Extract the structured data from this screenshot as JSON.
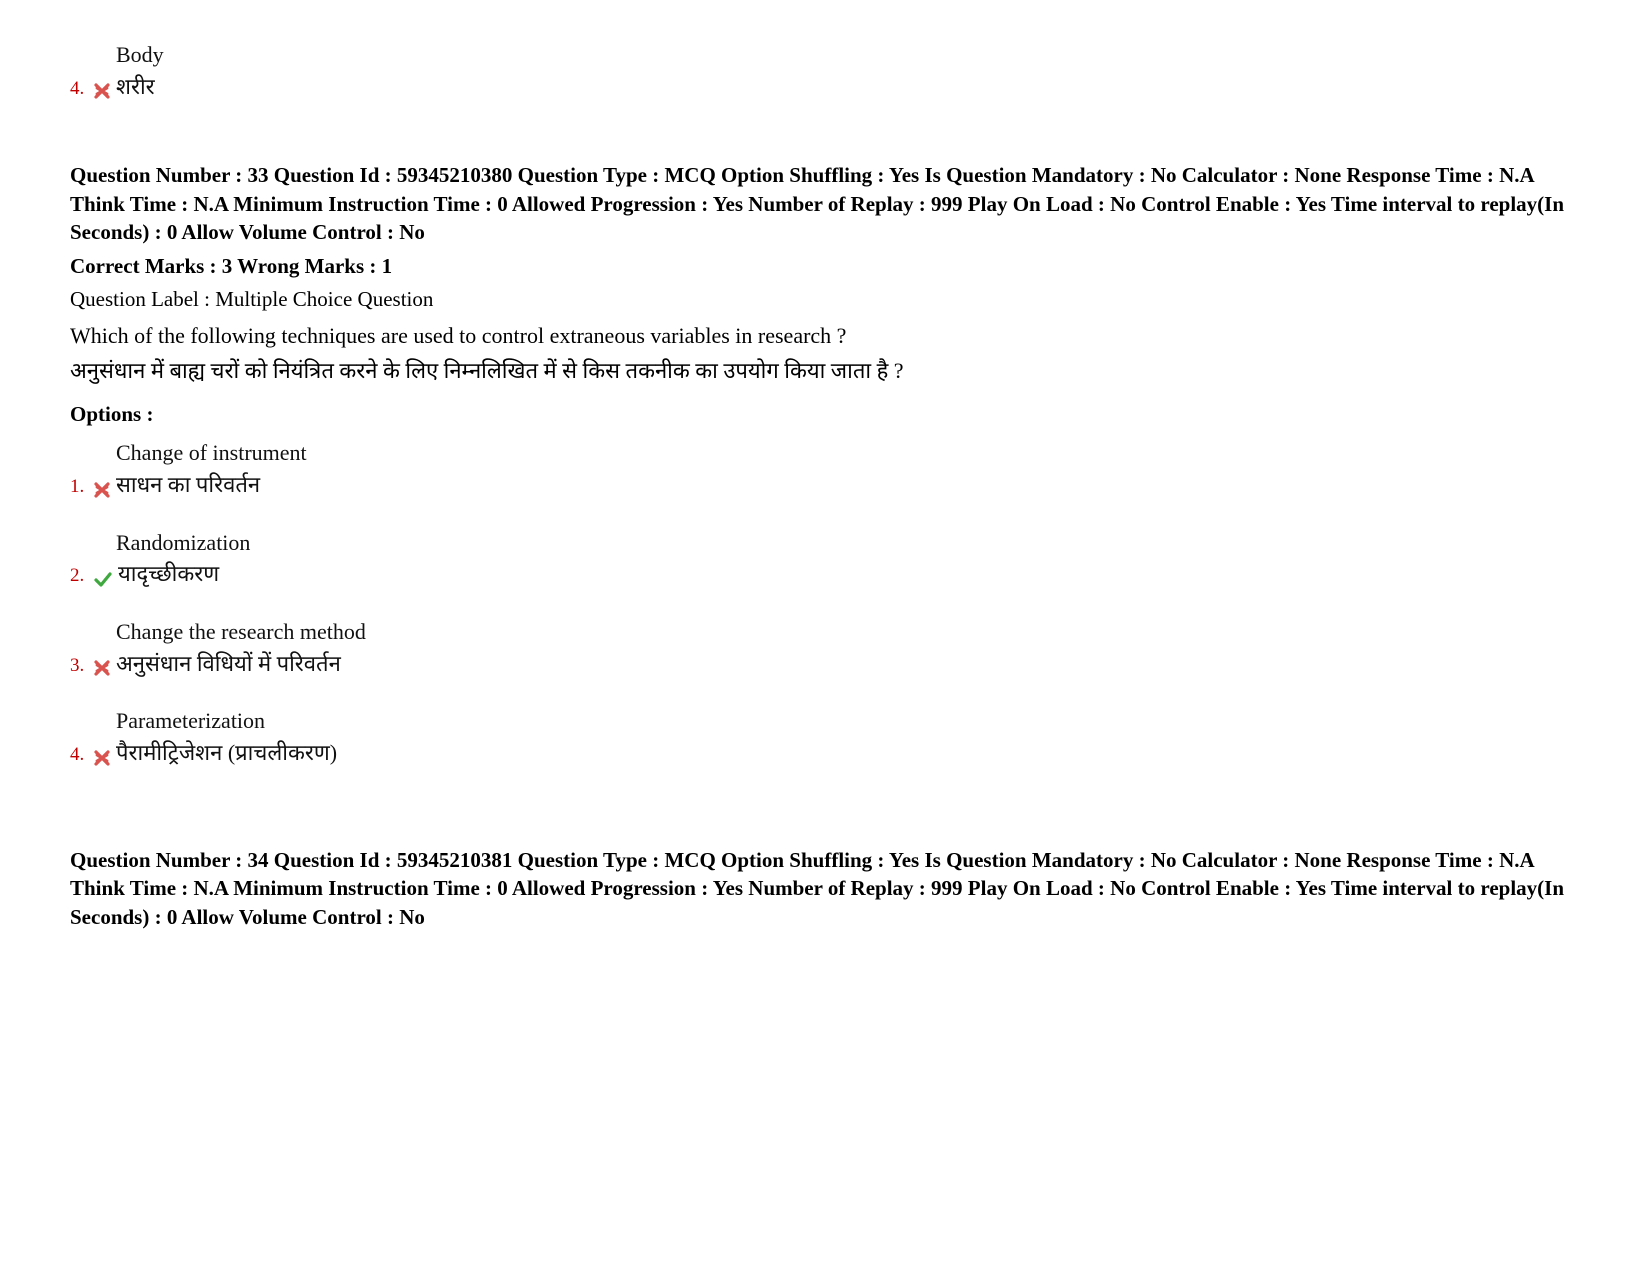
{
  "colors": {
    "option_number": "#c00000",
    "wrong_mark": "#d9534f",
    "correct_mark": "#3fa93f",
    "text": "#000000",
    "background": "#ffffff"
  },
  "prev_question_tail": {
    "option_number": "4.",
    "en": "Body",
    "hi": "शरीर",
    "status": "wrong"
  },
  "q33": {
    "meta": "Question Number : 33 Question Id : 59345210380 Question Type : MCQ Option Shuffling : Yes Is Question Mandatory : No Calculator : None Response Time : N.A Think Time : N.A Minimum Instruction Time : 0 Allowed Progression : Yes Number of Replay : 999 Play On Load : No Control Enable : Yes Time interval to replay(In Seconds) : 0 Allow Volume Control : No",
    "marks": "Correct Marks : 3 Wrong Marks : 1",
    "label": "Question Label : Multiple Choice Question",
    "question_en": "Which of the following techniques are used to control extraneous variables in research ?",
    "question_hi": "अनुसंधान में बाह्य चरों को नियंत्रित करने के लिए निम्नलिखित में से किस तकनीक का उपयोग किया जाता है ?",
    "options_heading": "Options :",
    "options": [
      {
        "num": "1.",
        "en": "Change of instrument",
        "hi": "साधन का परिवर्तन",
        "status": "wrong"
      },
      {
        "num": "2.",
        "en": "Randomization",
        "hi": "यादृच्छीकरण",
        "status": "correct"
      },
      {
        "num": "3.",
        "en": "Change the research method",
        "hi": "अनुसंधान विधियों में परिवर्तन",
        "status": "wrong"
      },
      {
        "num": "4.",
        "en": "Parameterization",
        "hi": "पैरामीट्रिजेशन (प्राचलीकरण)",
        "status": "wrong"
      }
    ]
  },
  "q34": {
    "meta": "Question Number : 34 Question Id : 59345210381 Question Type : MCQ Option Shuffling : Yes Is Question Mandatory : No Calculator : None Response Time : N.A Think Time : N.A Minimum Instruction Time : 0 Allowed Progression : Yes Number of Replay : 999 Play On Load : No Control Enable : Yes Time interval to replay(In Seconds) : 0 Allow Volume Control : No"
  }
}
